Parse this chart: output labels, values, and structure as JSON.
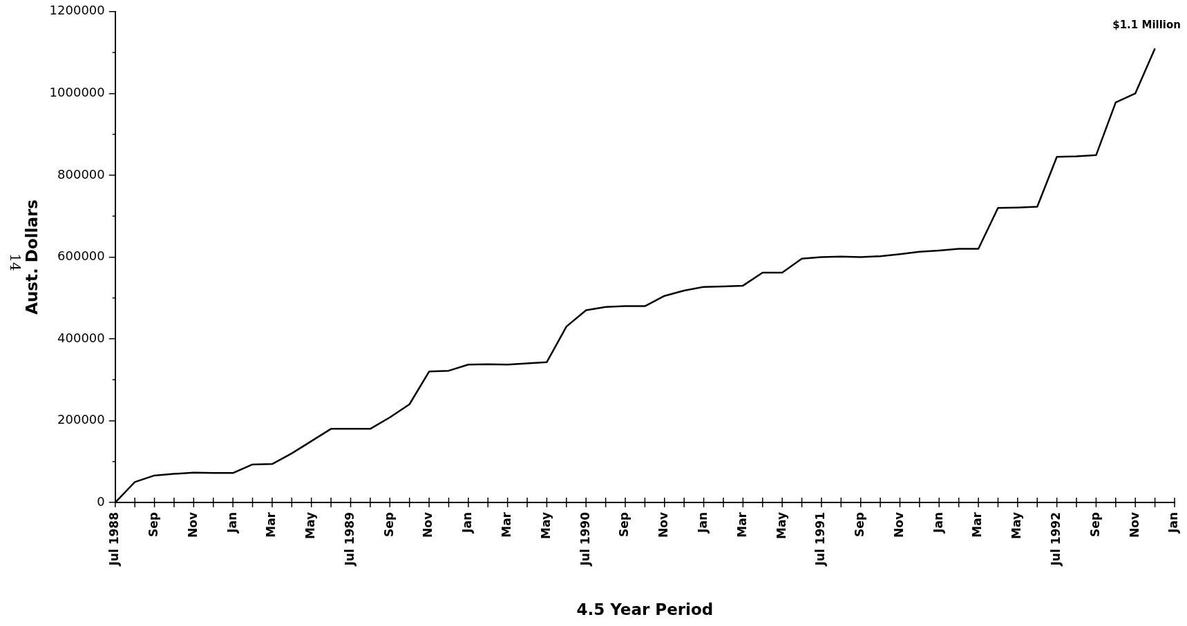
{
  "chart_data": {
    "type": "line",
    "xlabel": "4.5 Year Period",
    "ylabel": "Aust. Dollars",
    "categories": [
      "Jul 1988",
      null,
      "Sep",
      null,
      "Nov",
      null,
      "Jan",
      null,
      "Mar",
      null,
      "May",
      null,
      "Jul 1989",
      null,
      "Sep",
      null,
      "Nov",
      null,
      "Jan",
      null,
      "Mar",
      null,
      "May",
      null,
      "Jul 1990",
      null,
      "Sep",
      null,
      "Nov",
      null,
      "Jan",
      null,
      "Mar",
      null,
      "May",
      null,
      "Jul 1991",
      null,
      "Sep",
      null,
      "Nov",
      null,
      "Jan",
      null,
      "Mar",
      null,
      "May",
      null,
      "Jul 1992",
      null,
      "Sep",
      null,
      "Nov",
      null,
      "Jan"
    ],
    "values": [
      0,
      50000,
      66000,
      70000,
      73000,
      72000,
      72000,
      93000,
      94000,
      120000,
      150000,
      180000,
      180000,
      180000,
      208000,
      240000,
      320000,
      322000,
      337000,
      338000,
      337000,
      340000,
      343000,
      430000,
      470000,
      478000,
      480000,
      480000,
      505000,
      518000,
      527000,
      528000,
      530000,
      562000,
      562000,
      596000,
      600000,
      601000,
      600000,
      602000,
      607000,
      613000,
      616000,
      620000,
      620000,
      720000,
      721000,
      723000,
      845000,
      846000,
      849000,
      978000,
      1000000,
      1110000,
      null
    ],
    "color": "#000000",
    "marker": "none",
    "line_style": "solid",
    "grid": false,
    "legend": false,
    "ylim": [
      0,
      1200000
    ],
    "yticks": [
      0,
      200000,
      400000,
      600000,
      800000,
      1000000,
      1200000
    ],
    "annotations": [
      "$1.1 Million",
      "14"
    ]
  }
}
